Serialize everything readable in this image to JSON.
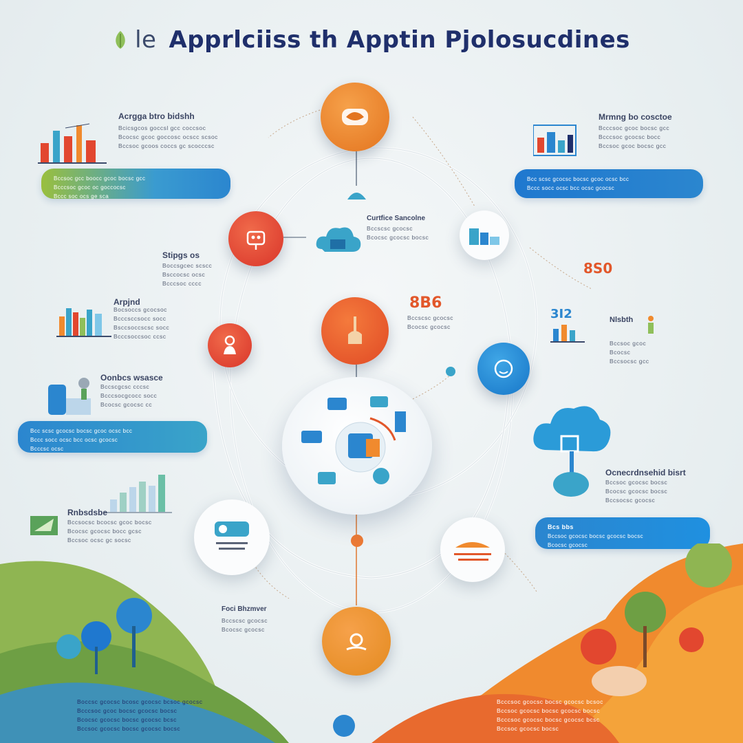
{
  "title": {
    "prefix": "le",
    "main": "Apprlciiss th Apptin Pjolosucdines"
  },
  "colors": {
    "orange": "#f08a2e",
    "red": "#e2472f",
    "blue": "#1f8fd6",
    "teal": "#3aa4c9",
    "navy": "#1f2f6b"
  },
  "left_blocks": {
    "b1": {
      "heading": "Acrgga btro bidshh",
      "lines": [
        "Bcicsgcos goccsl gcc coccsoc",
        "Bcocsc gcoc goccosc ocscc scsoc",
        "Bccsoc gcoos coccs gc scocccsc"
      ]
    },
    "pill1": {
      "lines": [
        "Bccsoc gcc boocc gcoc bocsc gcc",
        "Bcccsoc gcoc oc goccocsc",
        "Bccc soc ocs ge sca"
      ]
    },
    "b2": {
      "heading": "Stipgs os",
      "lines": [
        "Boccsgcec scscc",
        "Bsccocsc ocsc",
        "Bcccsoc cccc"
      ]
    },
    "b3": {
      "heading": "Arpjnd",
      "lines": [
        "Bocsoccs gcocsoc",
        "Bcccsccsocc socc",
        "Bsccsoccscsc socc",
        "Bcccsoccsoc ccsc"
      ]
    },
    "b4": {
      "heading": "Oonbcs wsasce",
      "lines": [
        "Bccscgcsc cccsc",
        "Bcccsocgcocc socc",
        "Bcocsc gcocsc cc"
      ]
    },
    "pill2": {
      "lines": [
        "Bcc scsc gcocsc bocsc gcoc ocsc bcc",
        "Bccc socc ocsc bcc ocsc gcocsc",
        "Bcccsc ocsc"
      ]
    },
    "b5": {
      "heading": "Rnbsdsbe",
      "lines": [
        "Bccsocsc bcocsc gcoc bocsc",
        "Bcocsc gcocsc bocc gcsc",
        "Bccsoc ocsc gc socsc"
      ]
    },
    "footer": {
      "lines": [
        "Boccsc gcocsc bcosc gcocsc bcsoc gcocsc",
        "Bcccsoc gcoc bocsc gcocsc bocsc",
        "Bcocsc gcocsc bocsc gcocsc bcsc",
        "Bccsoc gcocsc bocsc gcocsc bocsc"
      ]
    }
  },
  "center_blocks": {
    "c1": {
      "heading": "Curtfice Sancolne",
      "lines": [
        "Bccscsc gcocsc",
        "Bcocsc gcocsc bocsc"
      ]
    },
    "c2": {
      "value": "8B6",
      "lines": [
        "Bccscsc gcocsc",
        "Bcocsc gcocsc"
      ]
    },
    "c3": {
      "heading": "Foci Bhzmver",
      "lines": [
        "Bccscsc gcocsc",
        "Bcocsc gcocsc"
      ]
    }
  },
  "right_blocks": {
    "r1": {
      "heading": "Mrmng bo cosctoe",
      "lines": [
        "Bcccsoc gcoc bocsc gcc",
        "Bcccsoc gcocsc bocc",
        "Bccsoc gcoc bocsc gcc"
      ]
    },
    "pill1": {
      "lines": [
        "Bcc scsc gcocsc bocsc gcoc ocsc bcc",
        "Bccc socc ocsc bcc ocsc gcocsc"
      ]
    },
    "r2": {
      "value1": "8S0",
      "value2": "3I2"
    },
    "r3": {
      "heading": "Nlsbth",
      "lines": [
        "Bccsoc gcoc",
        "Bcocsc",
        "Bccsocsc gcc"
      ]
    },
    "r4": {
      "heading": "Ocnecrdnsehid bisrt",
      "lines": [
        "Bccsoc gcocsc bocsc",
        "Bcocsc gcocsc bocsc",
        "Bccsocsc gcocsc"
      ]
    },
    "pill2": {
      "heading": "Bcs bbs",
      "lines": [
        "Bccsoc gcocsc bocsc gcocsc bocsc",
        "Bcocsc gcocsc"
      ]
    },
    "footer": {
      "lines": [
        "Bcccsoc gcocsc bocsc gcocsc bcsoc",
        "Bccsoc gcocsc bocsc gcocsc bocsc",
        "Bcccsoc gcocsc bocsc gcocsc bcsc",
        "Bccsoc gcocsc bocsc"
      ]
    }
  },
  "icons": {
    "n1": "product-icon",
    "n2": "robot-icon",
    "n3": "worker-icon",
    "n4": "hand-icon",
    "n5": "face-icon",
    "n6": "gear-hand-icon",
    "hub": "devices-icon",
    "cloud": "cloud-icon"
  }
}
